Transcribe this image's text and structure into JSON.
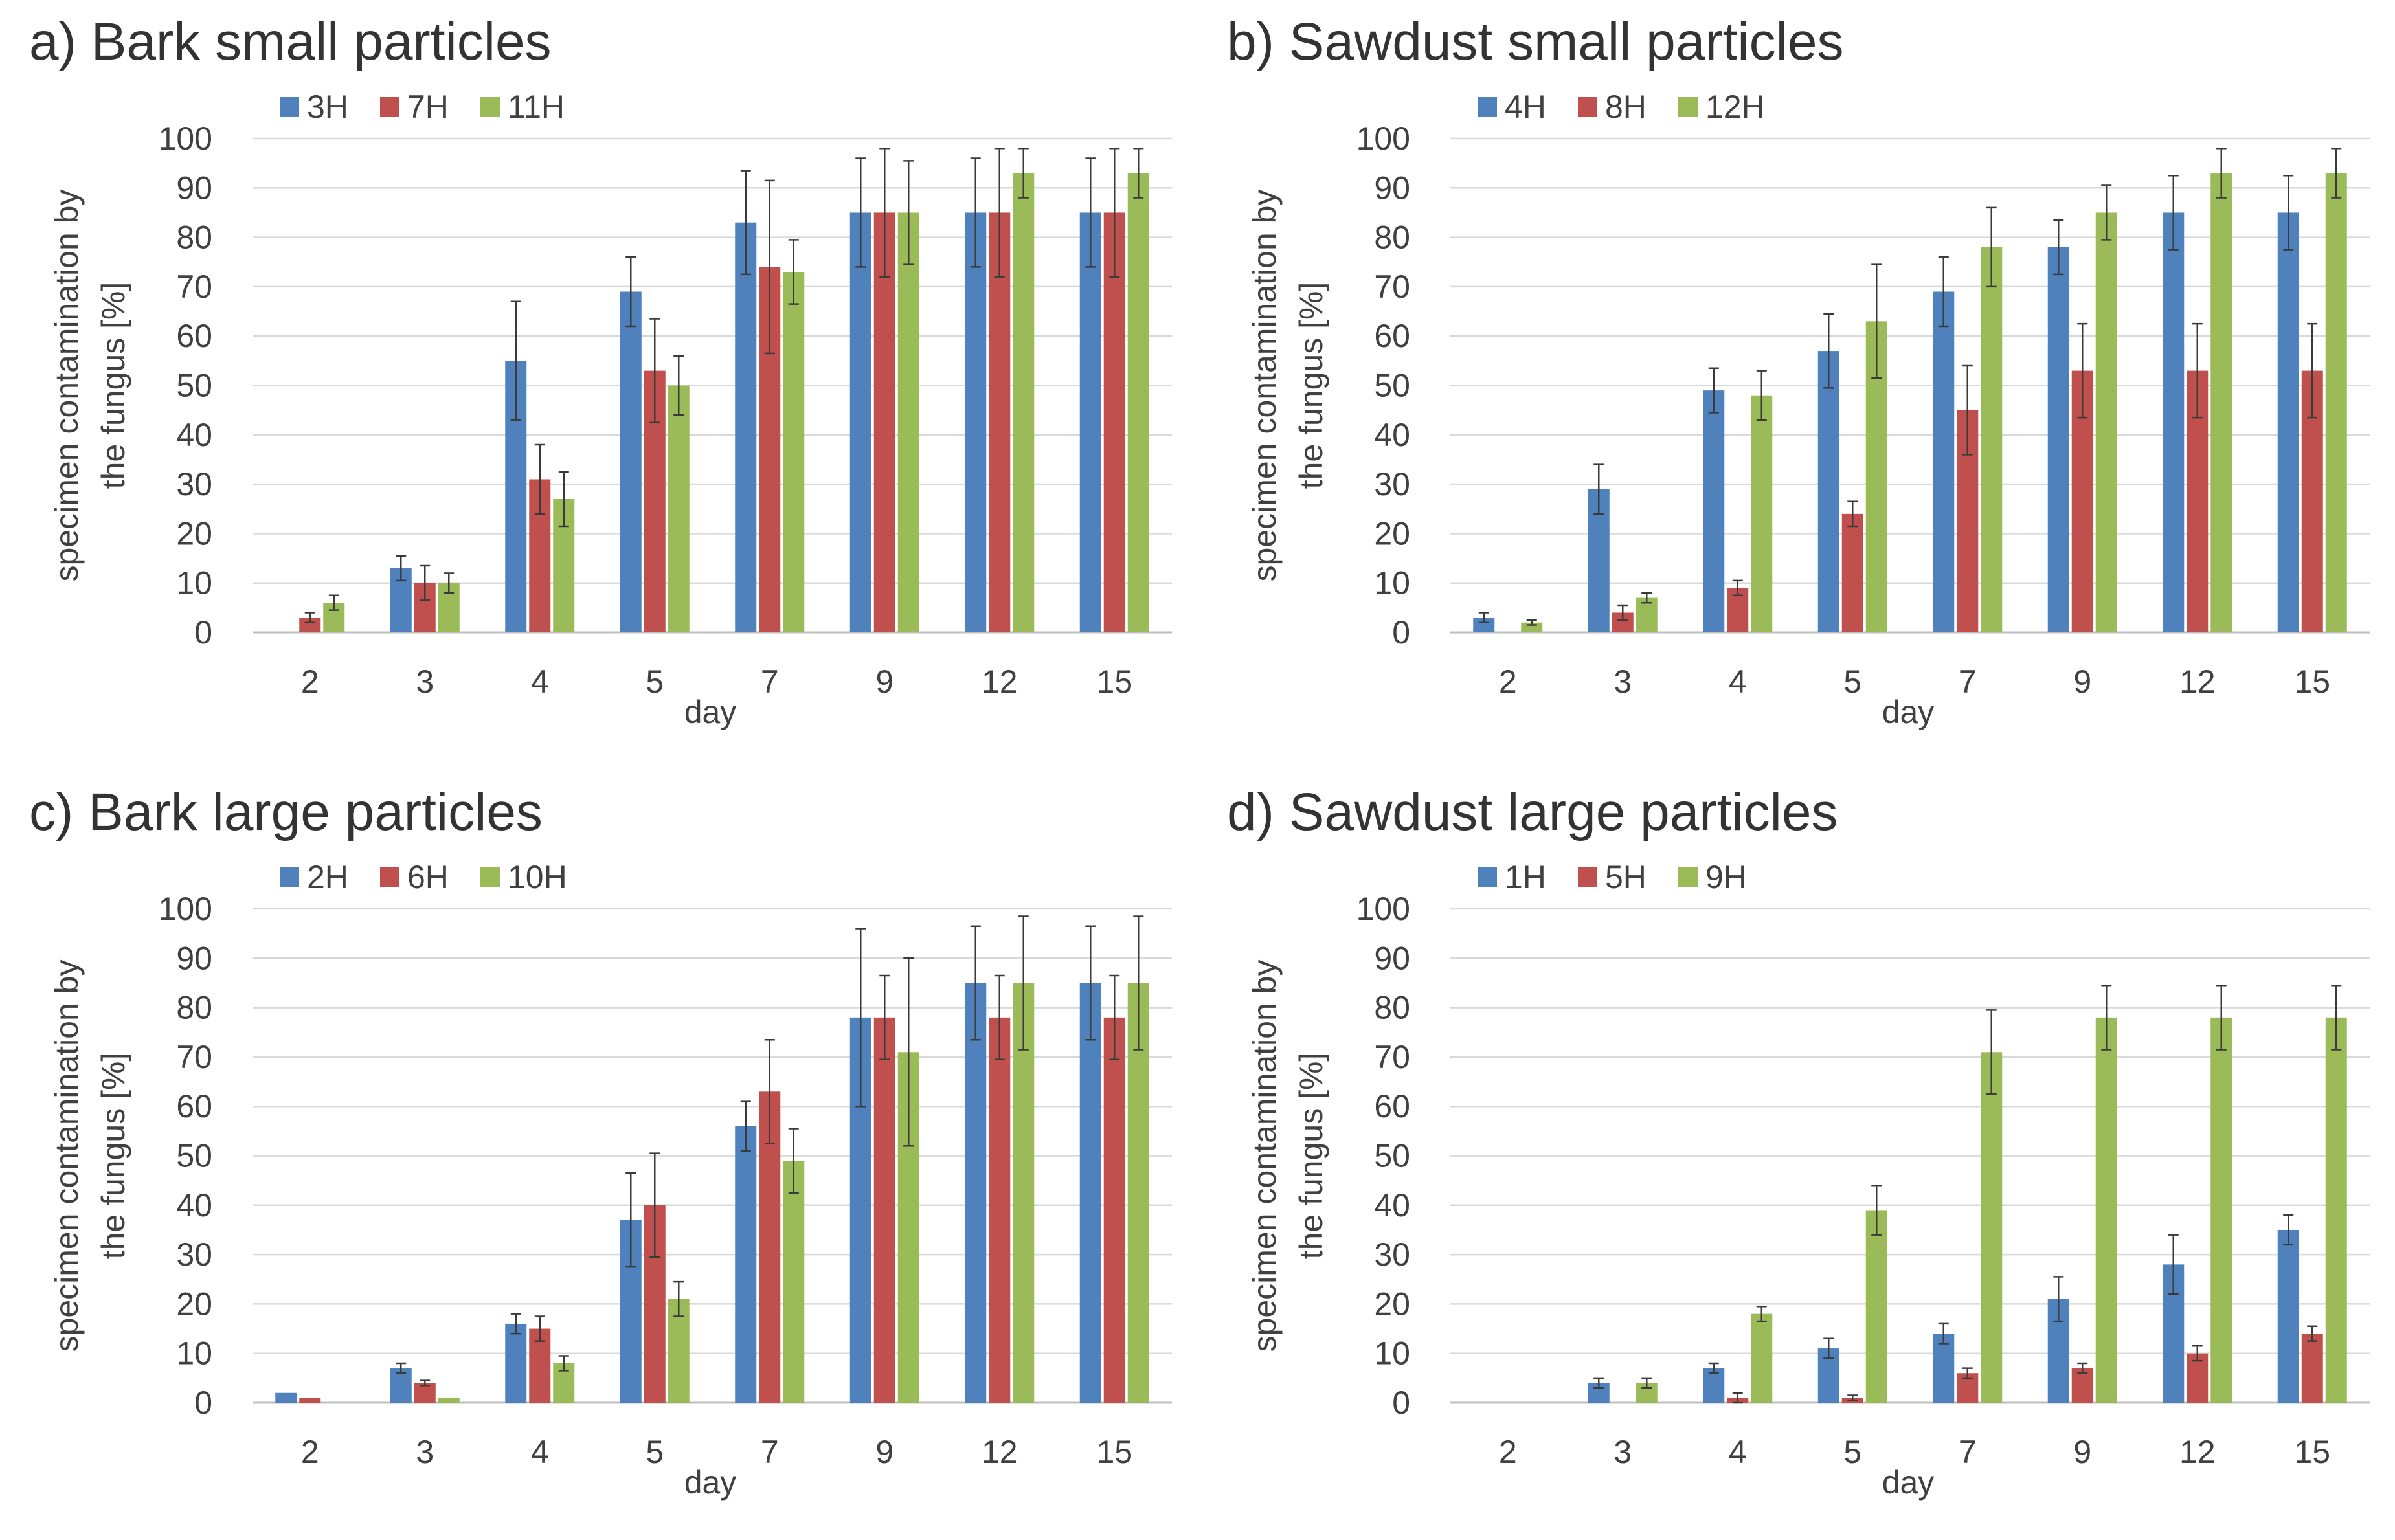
{
  "chart_data": [
    {
      "type": "bar",
      "title": "a)  Bark small particles",
      "xlabel": "day",
      "ylabel": [
        "specimen contamination by",
        "the fungus [%]"
      ],
      "ylim": [
        0,
        100
      ],
      "yticks": [
        "0",
        "10",
        "20",
        "30",
        "40",
        "50",
        "60",
        "70",
        "80",
        "90",
        "100"
      ],
      "categories": [
        "2",
        "3",
        "4",
        "5",
        "7",
        "9",
        "12",
        "15"
      ],
      "legend_position": "top-left",
      "series": [
        {
          "name": "3H",
          "color": "#4f81bd",
          "values": [
            0,
            13,
            55,
            69,
            83,
            85,
            85,
            85
          ],
          "errors": [
            0,
            2.5,
            12,
            7,
            10.5,
            11,
            11,
            11
          ]
        },
        {
          "name": "7H",
          "color": "#c0504d",
          "values": [
            3,
            10,
            31,
            53,
            74,
            85,
            85,
            85
          ],
          "errors": [
            1,
            3.5,
            7,
            10.5,
            17.5,
            13,
            13,
            13
          ]
        },
        {
          "name": "11H",
          "color": "#9bbb59",
          "values": [
            6,
            10,
            27,
            50,
            73,
            85,
            93,
            93
          ],
          "errors": [
            1.5,
            2,
            5.5,
            6,
            6.5,
            10.5,
            5,
            5
          ]
        }
      ]
    },
    {
      "type": "bar",
      "title": "b) Sawdust small particles",
      "xlabel": "day",
      "ylabel": [
        "specimen contamination by",
        "the fungus [%]"
      ],
      "ylim": [
        0,
        100
      ],
      "yticks": [
        "0",
        "10",
        "20",
        "30",
        "40",
        "50",
        "60",
        "70",
        "80",
        "90",
        "100"
      ],
      "categories": [
        "2",
        "3",
        "4",
        "5",
        "7",
        "9",
        "12",
        "15"
      ],
      "legend_position": "top-left",
      "series": [
        {
          "name": "4H",
          "color": "#4f81bd",
          "values": [
            3,
            29,
            49,
            57,
            69,
            78,
            85,
            85
          ],
          "errors": [
            1,
            5,
            4.5,
            7.5,
            7,
            5.5,
            7.5,
            7.5
          ]
        },
        {
          "name": "8H",
          "color": "#c0504d",
          "values": [
            0,
            4,
            9,
            24,
            45,
            53,
            53,
            53
          ],
          "errors": [
            0,
            1.5,
            1.5,
            2.5,
            9,
            9.5,
            9.5,
            9.5
          ]
        },
        {
          "name": "12H",
          "color": "#9bbb59",
          "values": [
            2,
            7,
            48,
            63,
            78,
            85,
            93,
            93
          ],
          "errors": [
            0.5,
            1,
            5,
            11.5,
            8,
            5.5,
            5,
            5
          ]
        }
      ]
    },
    {
      "type": "bar",
      "title": "c) Bark large particles",
      "xlabel": "day",
      "ylabel": [
        "specimen contamination by",
        "the fungus [%]"
      ],
      "ylim": [
        0,
        100
      ],
      "yticks": [
        "0",
        "10",
        "20",
        "30",
        "40",
        "50",
        "60",
        "70",
        "80",
        "90",
        "100"
      ],
      "categories": [
        "2",
        "3",
        "4",
        "5",
        "7",
        "9",
        "12",
        "15"
      ],
      "legend_position": "top-left",
      "series": [
        {
          "name": "2H",
          "color": "#4f81bd",
          "values": [
            2,
            7,
            16,
            37,
            56,
            78,
            85,
            85
          ],
          "errors": [
            0,
            1,
            2,
            9.5,
            5,
            18,
            11.5,
            11.5
          ]
        },
        {
          "name": "6H",
          "color": "#c0504d",
          "values": [
            1,
            4,
            15,
            40,
            63,
            78,
            78,
            78
          ],
          "errors": [
            0,
            0.5,
            2.5,
            10.5,
            10.5,
            8.5,
            8.5,
            8.5
          ]
        },
        {
          "name": "10H",
          "color": "#9bbb59",
          "values": [
            0,
            1,
            8,
            21,
            49,
            71,
            85,
            85
          ],
          "errors": [
            0,
            0,
            1.5,
            3.5,
            6.5,
            19,
            13.5,
            13.5
          ]
        }
      ]
    },
    {
      "type": "bar",
      "title": "d) Sawdust large particles",
      "xlabel": "day",
      "ylabel": [
        "specimen contamination by",
        "the fungus [%]"
      ],
      "ylim": [
        0,
        100
      ],
      "yticks": [
        "0",
        "10",
        "20",
        "30",
        "40",
        "50",
        "60",
        "70",
        "80",
        "90",
        "100"
      ],
      "categories": [
        "2",
        "3",
        "4",
        "5",
        "7",
        "9",
        "12",
        "15"
      ],
      "legend_position": "top-left",
      "series": [
        {
          "name": "1H",
          "color": "#4f81bd",
          "values": [
            0,
            4,
            7,
            11,
            14,
            21,
            28,
            35
          ],
          "errors": [
            0,
            1,
            1,
            2,
            2,
            4.5,
            6,
            3
          ]
        },
        {
          "name": "5H",
          "color": "#c0504d",
          "values": [
            0,
            0,
            1,
            1,
            6,
            7,
            10,
            14
          ],
          "errors": [
            0,
            0,
            1,
            0.5,
            1,
            1,
            1.5,
            1.5
          ]
        },
        {
          "name": "9H",
          "color": "#9bbb59",
          "values": [
            0,
            4,
            18,
            39,
            71,
            78,
            78,
            78
          ],
          "errors": [
            0,
            1,
            1.5,
            5,
            8.5,
            6.5,
            6.5,
            6.5
          ]
        }
      ]
    }
  ]
}
